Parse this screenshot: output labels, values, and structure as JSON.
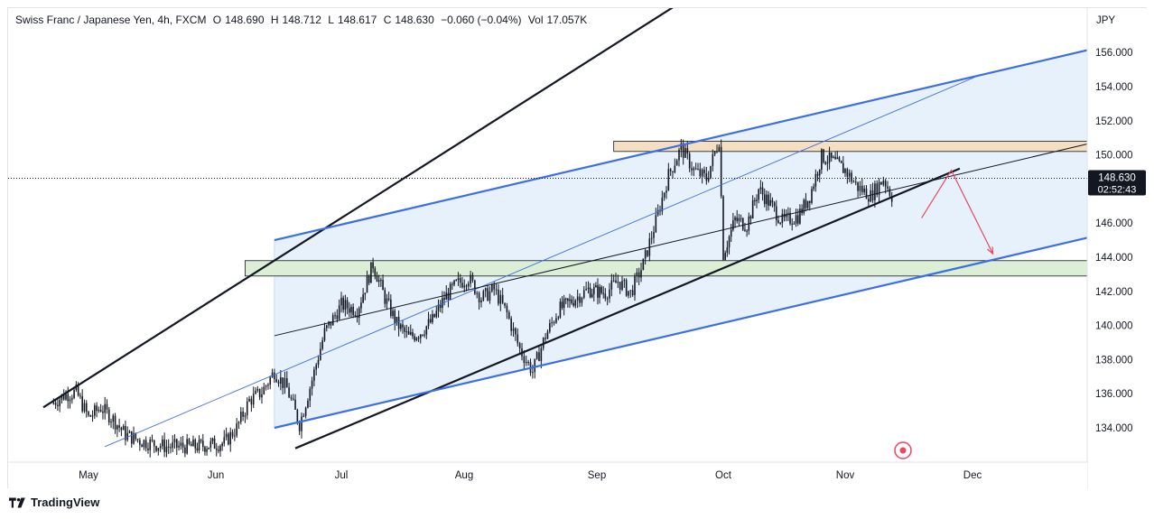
{
  "legend": {
    "symbol": "Swiss Franc / Japanese Yen, 4h, FXCM",
    "open_key": "O",
    "open": "148.690",
    "high_key": "H",
    "high": "148.712",
    "low_key": "L",
    "low": "148.617",
    "close_key": "C",
    "close": "148.630",
    "change": "−0.060 (−0.04%)",
    "vol_key": "Vol",
    "vol": "17.057K"
  },
  "footer": {
    "brand": "TradingView"
  },
  "colors": {
    "candle": "#131722",
    "channel_line": "#3c6fe0",
    "channel_fill": "#e3eefc",
    "resistance_zone": "#f5dfc2",
    "support_zone": "#dcefd6",
    "projection": "#e8485f",
    "price_badge": "#131722"
  },
  "chart_data": {
    "type": "candlestick",
    "timeframe": "4h",
    "currency": "JPY",
    "ylim": [
      132.8,
      158.0
    ],
    "y_ticks": [
      "134.000",
      "136.000",
      "138.000",
      "140.000",
      "142.000",
      "144.000",
      "146.000",
      "148.000",
      "150.000",
      "152.000",
      "154.000",
      "156.000"
    ],
    "x_labels": [
      {
        "label": "May",
        "month_index": 0
      },
      {
        "label": "Jun",
        "month_index": 1
      },
      {
        "label": "Jul",
        "month_index": 2
      },
      {
        "label": "Aug",
        "month_index": 3
      },
      {
        "label": "Sep",
        "month_index": 4
      },
      {
        "label": "Oct",
        "month_index": 5
      },
      {
        "label": "Nov",
        "month_index": 6
      },
      {
        "label": "Dec",
        "month_index": 7
      }
    ],
    "last_price": "148.630",
    "countdown": "02:52:43",
    "price_path": [
      [
        "2024-04-22",
        135.4
      ],
      [
        "2024-04-25",
        135.9
      ],
      [
        "2024-04-28",
        136.1
      ],
      [
        "2024-05-01",
        134.6
      ],
      [
        "2024-05-04",
        135.2
      ],
      [
        "2024-05-07",
        134.5
      ],
      [
        "2024-05-10",
        133.6
      ],
      [
        "2024-05-14",
        133.2
      ],
      [
        "2024-05-20",
        132.9
      ],
      [
        "2024-05-27",
        132.9
      ],
      [
        "2024-06-03",
        133.1
      ],
      [
        "2024-06-06",
        134.0
      ],
      [
        "2024-06-09",
        135.6
      ],
      [
        "2024-06-12",
        136.1
      ],
      [
        "2024-06-15",
        137.3
      ],
      [
        "2024-06-18",
        136.3
      ],
      [
        "2024-06-21",
        134.2
      ],
      [
        "2024-06-24",
        136.8
      ],
      [
        "2024-06-27",
        139.6
      ],
      [
        "2024-07-01",
        141.2
      ],
      [
        "2024-07-05",
        140.9
      ],
      [
        "2024-07-09",
        143.6
      ],
      [
        "2024-07-12",
        141.6
      ],
      [
        "2024-07-15",
        140.1
      ],
      [
        "2024-07-18",
        139.3
      ],
      [
        "2024-07-21",
        139.6
      ],
      [
        "2024-07-24",
        140.3
      ],
      [
        "2024-07-27",
        141.6
      ],
      [
        "2024-07-30",
        142.4
      ],
      [
        "2024-08-02",
        142.8
      ],
      [
        "2024-08-05",
        141.6
      ],
      [
        "2024-08-08",
        142.1
      ],
      [
        "2024-08-11",
        140.7
      ],
      [
        "2024-08-14",
        138.6
      ],
      [
        "2024-08-17",
        137.3
      ],
      [
        "2024-08-20",
        139.4
      ],
      [
        "2024-08-23",
        140.9
      ],
      [
        "2024-08-27",
        141.6
      ],
      [
        "2024-08-30",
        142.1
      ],
      [
        "2024-09-03",
        141.9
      ],
      [
        "2024-09-06",
        142.6
      ],
      [
        "2024-09-09",
        141.9
      ],
      [
        "2024-09-12",
        143.6
      ],
      [
        "2024-09-15",
        146.1
      ],
      [
        "2024-09-18",
        148.8
      ],
      [
        "2024-09-21",
        150.4
      ],
      [
        "2024-09-24",
        149.1
      ],
      [
        "2024-09-27",
        148.6
      ],
      [
        "2024-09-30",
        150.9
      ],
      [
        "2024-10-01",
        144.2
      ],
      [
        "2024-10-04",
        146.2
      ],
      [
        "2024-10-07",
        145.9
      ],
      [
        "2024-10-10",
        148.0
      ],
      [
        "2024-10-13",
        147.1
      ],
      [
        "2024-10-16",
        146.1
      ],
      [
        "2024-10-20",
        146.4
      ],
      [
        "2024-10-23",
        147.6
      ],
      [
        "2024-10-26",
        149.9
      ],
      [
        "2024-10-29",
        149.6
      ],
      [
        "2024-11-01",
        149.1
      ],
      [
        "2024-11-04",
        148.1
      ],
      [
        "2024-11-07",
        147.6
      ],
      [
        "2024-11-10",
        148.6
      ],
      [
        "2024-11-13",
        147.1
      ],
      [
        "2024-11-16",
        146.1
      ],
      [
        "2024-11-19",
        147.6
      ],
      [
        "2024-11-22",
        148.4
      ],
      [
        "2024-11-25",
        148.63
      ]
    ],
    "drawings": {
      "black_channel_upper": [
        [
          "2024-04-20",
          135.2
        ],
        [
          "2024-09-20",
          158.8
        ]
      ],
      "black_channel_lower": [
        [
          "2024-06-20",
          132.8
        ],
        [
          "2024-11-28",
          149.2
        ]
      ],
      "blue_channel_upper": [
        [
          "2024-06-15",
          145.0
        ],
        [
          "2025-01-01",
          156.3
        ]
      ],
      "blue_channel_lower": [
        [
          "2024-06-15",
          134.0
        ],
        [
          "2025-01-01",
          145.3
        ]
      ],
      "blue_thin_line": [
        [
          "2024-05-05",
          132.9
        ],
        [
          "2024-12-03",
          154.7
        ]
      ],
      "black_thin_trend": [
        [
          "2024-06-15",
          139.4
        ],
        [
          "2025-01-01",
          150.8
        ]
      ],
      "resistance_zone": {
        "from": "2024-09-05",
        "to": "2025-01-01",
        "low": 150.2,
        "high": 150.8
      },
      "support_zone": {
        "from": "2024-06-08",
        "to": "2025-01-22",
        "low": 142.9,
        "high": 143.8
      },
      "projection": [
        [
          "2024-11-19",
          146.3
        ],
        [
          "2024-11-26",
          149.1
        ],
        [
          "2024-12-06",
          144.2
        ]
      ]
    }
  }
}
